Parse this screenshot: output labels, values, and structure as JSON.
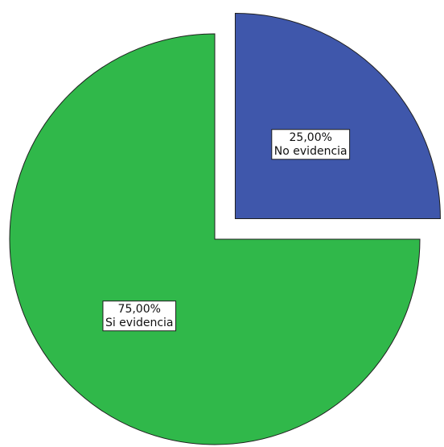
{
  "chart_data": {
    "type": "pie",
    "title": "",
    "slices": [
      {
        "category": "No evidencia",
        "percent_label": "25,00%",
        "value": 25.0,
        "color": "#3f57ab",
        "exploded": true
      },
      {
        "category": "Si evidencia",
        "percent_label": "75,00%",
        "value": 75.0,
        "color": "#30b84a",
        "exploded": false
      }
    ]
  }
}
